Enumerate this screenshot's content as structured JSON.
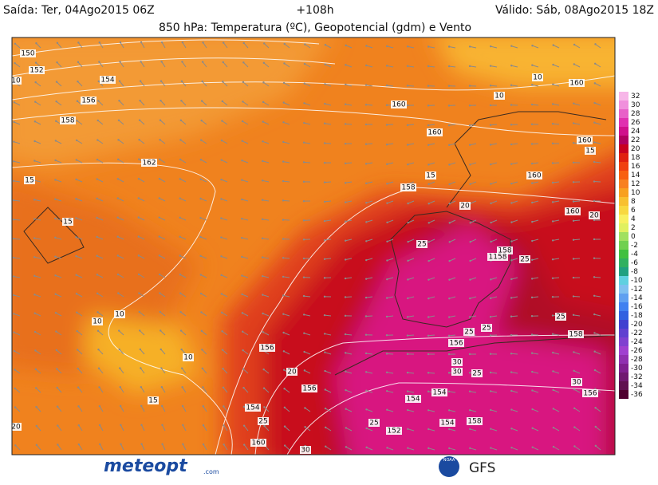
{
  "header": {
    "run": "Saída: Ter, 04Ago2015 06Z",
    "lead": "+108h",
    "valid": "Válido: Sáb, 08Ago2015 18Z",
    "title": "850 hPa: Temperatura (ºC), Geopotencial (gdm) e Vento"
  },
  "colorbar": {
    "ticks": [
      32,
      30,
      28,
      26,
      24,
      22,
      20,
      18,
      16,
      14,
      12,
      10,
      8,
      6,
      4,
      2,
      0,
      -2,
      -4,
      -6,
      -8,
      -10,
      -12,
      -14,
      -16,
      -18,
      -20,
      -22,
      -24,
      -26,
      -28,
      -30,
      -32,
      -34,
      -36
    ],
    "colors": [
      "#f7b6e8",
      "#f090dc",
      "#e860c8",
      "#e030b0",
      "#d0108c",
      "#b00060",
      "#c80020",
      "#e02010",
      "#f04010",
      "#f86010",
      "#f88020",
      "#f8a020",
      "#f8c030",
      "#f8d840",
      "#f8f060",
      "#e0f060",
      "#a0e060",
      "#70d050",
      "#40c040",
      "#30b060",
      "#20a080",
      "#60d0e0",
      "#80c0f0",
      "#60a0f0",
      "#4080f0",
      "#3060e0",
      "#4040d0",
      "#6040d0",
      "#8040d0",
      "#a040d0",
      "#9030b0",
      "#802090",
      "#701870",
      "#601050",
      "#500030"
    ]
  },
  "contour_labels": [
    150,
    152,
    154,
    156,
    158,
    162,
    160,
    160,
    160,
    160,
    160,
    160,
    158,
    158,
    156,
    156,
    156,
    156,
    154,
    154,
    154,
    154,
    152,
    160,
    10,
    10,
    10,
    10,
    10,
    10,
    15,
    15,
    15,
    15,
    15,
    20,
    20,
    20,
    20,
    25,
    25,
    25,
    25,
    25,
    25,
    25,
    25,
    30,
    30,
    30,
    30,
    158,
    158,
    1158
  ],
  "footer": {
    "logo": "meteopt",
    "logo_suffix": ".com",
    "agency": "NOAA",
    "model": "GFS"
  }
}
